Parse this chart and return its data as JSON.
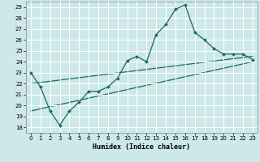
{
  "xlabel": "Humidex (Indice chaleur)",
  "ylabel": "",
  "xlim": [
    -0.5,
    23.5
  ],
  "ylim": [
    17.5,
    29.5
  ],
  "yticks": [
    18,
    19,
    20,
    21,
    22,
    23,
    24,
    25,
    26,
    27,
    28,
    29
  ],
  "xticks": [
    0,
    1,
    2,
    3,
    4,
    5,
    6,
    7,
    8,
    9,
    10,
    11,
    12,
    13,
    14,
    15,
    16,
    17,
    18,
    19,
    20,
    21,
    22,
    23
  ],
  "bg_color": "#cce8e8",
  "grid_color": "#ffffff",
  "line_color": "#1a6b5a",
  "line1_x": [
    0,
    1,
    2,
    3,
    4,
    5,
    6,
    7,
    8,
    9,
    10,
    11,
    12,
    13,
    14,
    15,
    16,
    17,
    18,
    19,
    20,
    21,
    22,
    23
  ],
  "line1_y": [
    23.0,
    21.7,
    19.5,
    18.2,
    19.5,
    20.3,
    21.3,
    21.3,
    21.7,
    22.5,
    24.1,
    24.5,
    24.0,
    26.5,
    27.4,
    28.8,
    29.2,
    26.7,
    26.0,
    25.2,
    24.7,
    24.7,
    24.7,
    24.2
  ],
  "line2_x": [
    0,
    23
  ],
  "line2_y": [
    22.0,
    24.5
  ],
  "line3_x": [
    0,
    23
  ],
  "line3_y": [
    19.5,
    24.0
  ]
}
